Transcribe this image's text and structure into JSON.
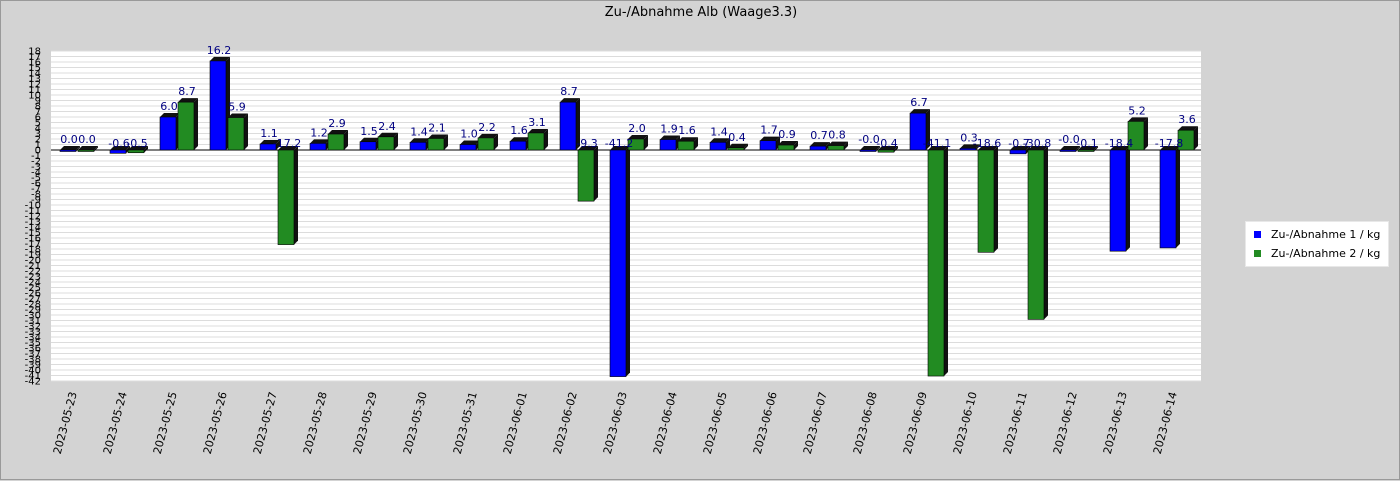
{
  "chart_data": {
    "type": "bar",
    "title": "Zu-/Abnahme Alb (Waage3.3)",
    "xlabel": "",
    "ylabel": "",
    "ylim": [
      -42,
      18
    ],
    "grid": true,
    "legend_position": "right",
    "categories": [
      "2023-05-23",
      "2023-05-24",
      "2023-05-25",
      "2023-05-26",
      "2023-05-27",
      "2023-05-28",
      "2023-05-29",
      "2023-05-30",
      "2023-05-31",
      "2023-06-01",
      "2023-06-02",
      "2023-06-03",
      "2023-06-04",
      "2023-06-05",
      "2023-06-06",
      "2023-06-07",
      "2023-06-08",
      "2023-06-09",
      "2023-06-10",
      "2023-06-11",
      "2023-06-12",
      "2023-06-13",
      "2023-06-14"
    ],
    "series": [
      {
        "name": "Zu-/Abnahme 1 / kg",
        "color": "#0000ff",
        "values": [
          0.0,
          -0.6,
          6.0,
          16.2,
          1.1,
          1.2,
          1.5,
          1.4,
          1.0,
          1.6,
          8.7,
          -41.2,
          1.9,
          1.4,
          1.7,
          0.7,
          -0.0,
          6.7,
          0.3,
          -0.7,
          -0.0,
          -18.4,
          -17.8
        ],
        "labels": [
          "0.0",
          "-0.6",
          "6.0",
          "16.2",
          "1.1",
          "1.2",
          "1.5",
          "1.4",
          "1.0",
          "1.6",
          "8.7",
          "-41.2",
          "1.9",
          "1.4",
          "1.7",
          "0.7",
          "-0.0",
          "6.7",
          "0.3",
          "-0.7",
          "-0.0",
          "-18.4",
          "-17.8"
        ]
      },
      {
        "name": "Zu-/Abnahme 2 / kg",
        "color": "#228b22",
        "values": [
          0.0,
          -0.5,
          8.7,
          5.9,
          -17.2,
          2.9,
          2.4,
          2.1,
          2.2,
          3.1,
          -9.3,
          2.0,
          1.6,
          0.4,
          0.9,
          0.8,
          -0.4,
          -41.1,
          -18.6,
          -30.8,
          -0.1,
          5.2,
          3.6
        ],
        "labels": [
          "0.0",
          "-0.5",
          "8.7",
          "5.9",
          "-17.2",
          "2.9",
          "2.4",
          "2.1",
          "2.2",
          "3.1",
          "-9.3",
          "2.0",
          "1.6",
          "0.4",
          "0.9",
          "0.8",
          "-0.4",
          "-41.1",
          "-18.6",
          "-30.8",
          "-0.1",
          "5.2",
          "3.6"
        ]
      }
    ],
    "yticks": [
      18,
      17,
      16,
      15,
      14,
      13,
      12,
      11,
      10,
      9,
      8,
      7,
      6,
      5,
      4,
      3,
      2,
      1,
      0,
      -1,
      -2,
      -3,
      -4,
      -5,
      -6,
      -7,
      -8,
      -9,
      -10,
      -11,
      -12,
      -13,
      -14,
      -15,
      -16,
      -17,
      -18,
      -19,
      -20,
      -21,
      -22,
      -23,
      -24,
      -25,
      -26,
      -27,
      -28,
      -29,
      -30,
      -31,
      -32,
      -33,
      -34,
      -35,
      -36,
      -37,
      -38,
      -39,
      -40,
      -41,
      -42
    ]
  }
}
